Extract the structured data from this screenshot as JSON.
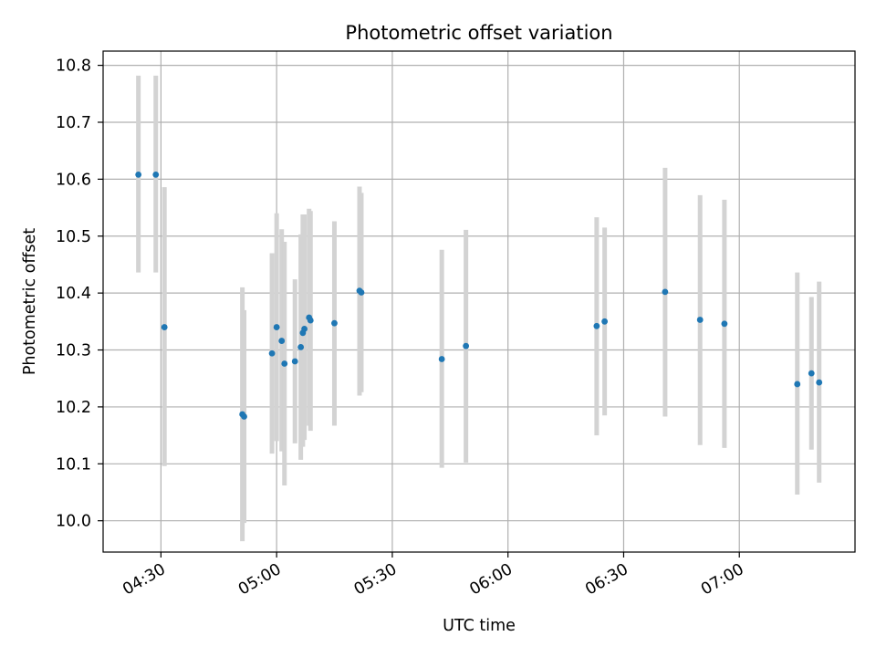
{
  "chart_data": {
    "type": "scatter",
    "title": "Photometric offset variation",
    "xlabel": "UTC time",
    "ylabel": "Photometric offset",
    "x_unit": "UTC HH:MM",
    "xlim": [
      "04:15",
      "07:30"
    ],
    "ylim": [
      9.945,
      10.825
    ],
    "xticks": [
      "04:30",
      "05:00",
      "05:30",
      "06:00",
      "06:30",
      "07:00"
    ],
    "yticks": [
      "10.0",
      "10.1",
      "10.2",
      "10.3",
      "10.4",
      "10.5",
      "10.6",
      "10.7",
      "10.8"
    ],
    "grid": true,
    "point_color": "#1f77b4",
    "errorbar_color": "#d3d3d3",
    "points": [
      {
        "x": "04:24:09",
        "y": 10.608,
        "lo": 10.436,
        "hi": 10.782
      },
      {
        "x": "04:28:40",
        "y": 10.608,
        "lo": 10.436,
        "hi": 10.782
      },
      {
        "x": "04:30:54",
        "y": 10.34,
        "lo": 10.096,
        "hi": 10.586
      },
      {
        "x": "04:51:07",
        "y": 10.187,
        "lo": 9.964,
        "hi": 10.41
      },
      {
        "x": "04:51:34",
        "y": 10.183,
        "lo": 9.996,
        "hi": 10.37
      },
      {
        "x": "04:58:48",
        "y": 10.294,
        "lo": 10.118,
        "hi": 10.47
      },
      {
        "x": "05:00:00",
        "y": 10.34,
        "lo": 10.14,
        "hi": 10.54
      },
      {
        "x": "05:01:19",
        "y": 10.316,
        "lo": 10.122,
        "hi": 10.512
      },
      {
        "x": "05:02:02",
        "y": 10.276,
        "lo": 10.062,
        "hi": 10.49
      },
      {
        "x": "05:04:45",
        "y": 10.28,
        "lo": 10.136,
        "hi": 10.424
      },
      {
        "x": "05:06:16",
        "y": 10.305,
        "lo": 10.107,
        "hi": 10.503
      },
      {
        "x": "05:06:48",
        "y": 10.33,
        "lo": 10.13,
        "hi": 10.538
      },
      {
        "x": "05:07:12",
        "y": 10.337,
        "lo": 10.142,
        "hi": 10.538
      },
      {
        "x": "05:08:25",
        "y": 10.357,
        "lo": 10.167,
        "hi": 10.548
      },
      {
        "x": "05:08:47",
        "y": 10.352,
        "lo": 10.158,
        "hi": 10.544
      },
      {
        "x": "05:14:59",
        "y": 10.347,
        "lo": 10.167,
        "hi": 10.526
      },
      {
        "x": "05:21:30",
        "y": 10.404,
        "lo": 10.22,
        "hi": 10.587
      },
      {
        "x": "05:21:58",
        "y": 10.401,
        "lo": 10.226,
        "hi": 10.576
      },
      {
        "x": "05:42:50",
        "y": 10.284,
        "lo": 10.093,
        "hi": 10.476
      },
      {
        "x": "05:49:06",
        "y": 10.307,
        "lo": 10.102,
        "hi": 10.511
      },
      {
        "x": "06:23:00",
        "y": 10.342,
        "lo": 10.15,
        "hi": 10.533
      },
      {
        "x": "06:25:04",
        "y": 10.35,
        "lo": 10.185,
        "hi": 10.515
      },
      {
        "x": "06:40:45",
        "y": 10.402,
        "lo": 10.183,
        "hi": 10.62
      },
      {
        "x": "06:49:49",
        "y": 10.353,
        "lo": 10.133,
        "hi": 10.572
      },
      {
        "x": "06:56:08",
        "y": 10.346,
        "lo": 10.128,
        "hi": 10.564
      },
      {
        "x": "07:15:02",
        "y": 10.24,
        "lo": 10.046,
        "hi": 10.436
      },
      {
        "x": "07:18:42",
        "y": 10.259,
        "lo": 10.125,
        "hi": 10.393
      },
      {
        "x": "07:20:42",
        "y": 10.243,
        "lo": 10.067,
        "hi": 10.42
      }
    ]
  }
}
